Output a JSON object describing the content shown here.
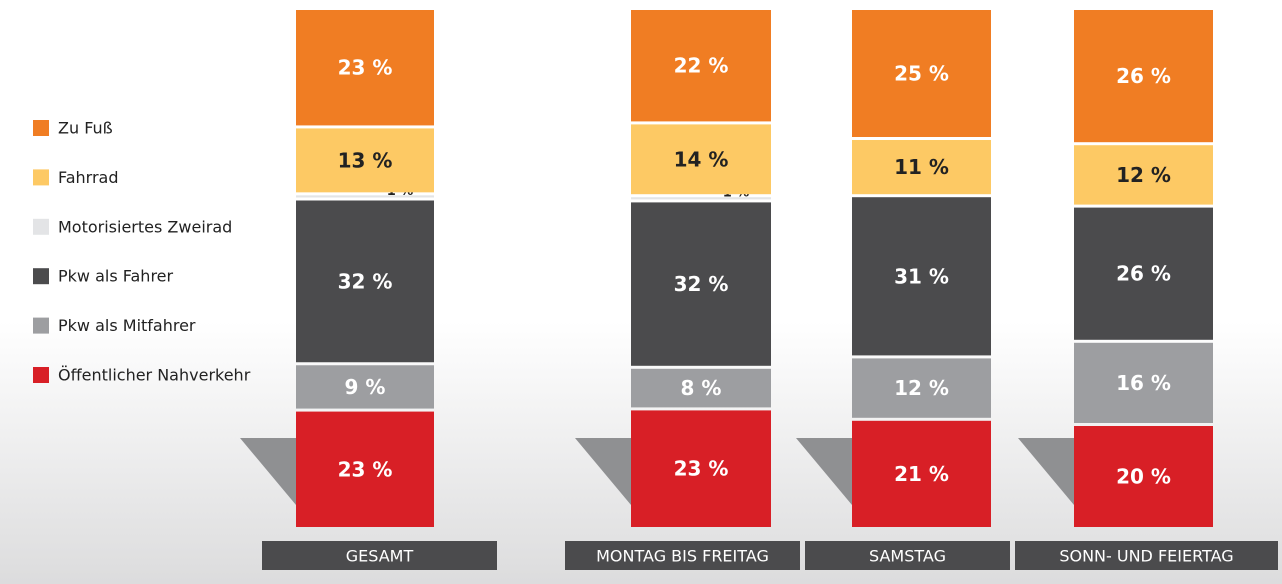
{
  "chart_data": {
    "type": "stacked-bar",
    "categories": [
      "GESAMT",
      "MONTAG BIS FREITAG",
      "SAMSTAG",
      "SONN- UND FEIERTAG"
    ],
    "series": [
      {
        "name": "Zu Fuß",
        "color": "#f07d23",
        "values": [
          23,
          22,
          25,
          26
        ],
        "value_labels": [
          "23 %",
          "22 %",
          "25 %",
          "26 %"
        ]
      },
      {
        "name": "Fahrrad",
        "color": "#fdc964",
        "values": [
          13,
          14,
          11,
          12
        ],
        "value_labels": [
          "13 %",
          "14 %",
          "11 %",
          "12 %"
        ]
      },
      {
        "name": "Motorisiertes Zweirad",
        "color": "#e3e4e6",
        "values": [
          1,
          1,
          0,
          0
        ],
        "value_labels": [
          "1 %",
          "1 %",
          null,
          null
        ]
      },
      {
        "name": "Pkw als Fahrer",
        "color": "#4b4b4d",
        "values": [
          32,
          32,
          31,
          26
        ],
        "value_labels": [
          "32 %",
          "32 %",
          "31 %",
          "26 %"
        ]
      },
      {
        "name": "Pkw als Mitfahrer",
        "color": "#9d9ea1",
        "values": [
          9,
          8,
          12,
          16
        ],
        "value_labels": [
          "9 %",
          "8 %",
          "12 %",
          "16 %"
        ]
      },
      {
        "name": "Öffentlicher Nahverkehr",
        "color": "#d81f26",
        "values": [
          23,
          23,
          21,
          20
        ],
        "value_labels": [
          "23 %",
          "23 %",
          "21 %",
          "20 %"
        ]
      }
    ]
  }
}
